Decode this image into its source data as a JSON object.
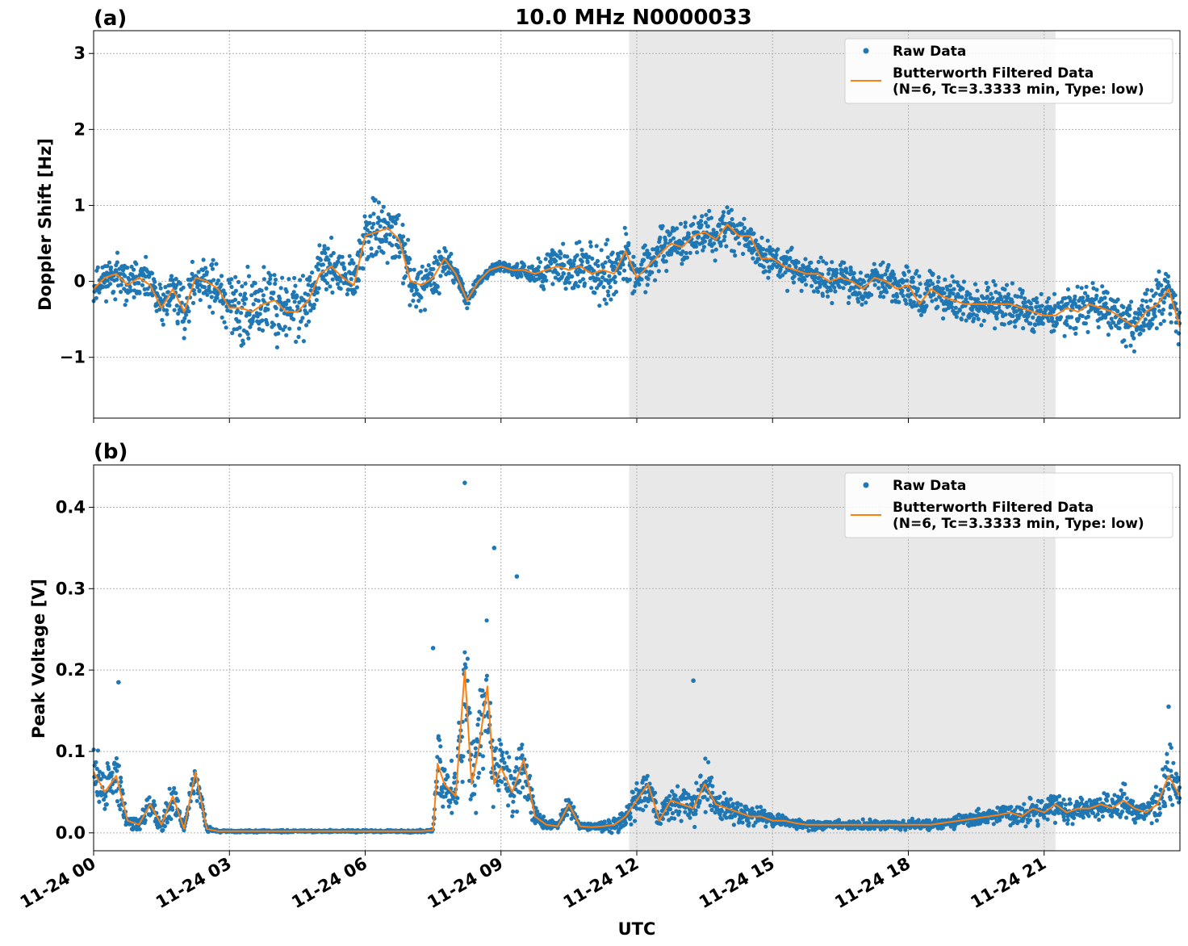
{
  "title": "10.0 MHz N0000033",
  "xlabel": "UTC",
  "x_tick_labels": [
    "11-24 00",
    "11-24 03",
    "11-24 06",
    "11-24 09",
    "11-24 12",
    "11-24 15",
    "11-24 18",
    "11-24 21"
  ],
  "colors": {
    "raw": "#1f77b4",
    "filtered": "#ff7f0e",
    "shade": "#e8e8e8",
    "grid": "#b0b0b0"
  },
  "chart_data": [
    {
      "type": "scatter",
      "panel_label": "(a)",
      "ylabel": "Doppler Shift [Hz]",
      "xlim": [
        0,
        24
      ],
      "ylim": [
        -1.8,
        3.3
      ],
      "y_tick_labels": [
        "−1",
        "0",
        "1",
        "2",
        "3"
      ],
      "y_ticks": [
        -1,
        0,
        1,
        2,
        3
      ],
      "shaded_region": [
        11.83,
        21.25
      ],
      "grid": true,
      "legend": {
        "placement": "top-right",
        "raw_label": "Raw Data",
        "filtered_label_line1": "Butterworth Filtered Data",
        "filtered_label_line2": "(N=6, Tc=3.3333 min, Type: low)"
      },
      "series": [
        {
          "name": "Butterworth Filtered Data",
          "x": [
            0,
            0.25,
            0.5,
            0.75,
            1.0,
            1.25,
            1.5,
            1.75,
            2.0,
            2.25,
            2.5,
            2.75,
            3.0,
            3.25,
            3.5,
            3.75,
            4.0,
            4.25,
            4.5,
            4.75,
            5.0,
            5.25,
            5.5,
            5.75,
            6.0,
            6.25,
            6.5,
            6.75,
            7.0,
            7.25,
            7.5,
            7.75,
            8.0,
            8.25,
            8.5,
            8.75,
            9.0,
            9.25,
            9.5,
            9.75,
            10.0,
            10.25,
            10.5,
            10.75,
            11.0,
            11.25,
            11.5,
            11.75,
            12.0,
            12.25,
            12.5,
            12.75,
            13.0,
            13.25,
            13.5,
            13.75,
            14.0,
            14.25,
            14.5,
            14.75,
            15.0,
            15.25,
            15.5,
            15.75,
            16.0,
            16.25,
            16.5,
            16.75,
            17.0,
            17.25,
            17.5,
            17.75,
            18.0,
            18.25,
            18.5,
            18.75,
            19.0,
            19.25,
            19.5,
            19.75,
            20.0,
            20.25,
            20.5,
            20.75,
            21.0,
            21.25,
            21.5,
            21.75,
            22.0,
            22.25,
            22.5,
            22.75,
            23.0,
            23.25,
            23.5,
            23.75,
            24.0
          ],
          "values": [
            -0.1,
            0.05,
            0.1,
            -0.05,
            0.05,
            -0.05,
            -0.35,
            -0.1,
            -0.4,
            0.05,
            0.0,
            -0.1,
            -0.35,
            -0.35,
            -0.4,
            -0.3,
            -0.25,
            -0.4,
            -0.4,
            -0.25,
            0.1,
            0.2,
            0.05,
            -0.05,
            0.6,
            0.65,
            0.7,
            0.55,
            0.0,
            -0.05,
            0.05,
            0.3,
            0.1,
            -0.25,
            0.0,
            0.15,
            0.2,
            0.15,
            0.15,
            0.1,
            0.15,
            0.2,
            0.15,
            0.2,
            0.1,
            0.15,
            0.1,
            0.4,
            0.05,
            0.2,
            0.35,
            0.5,
            0.45,
            0.6,
            0.65,
            0.55,
            0.75,
            0.6,
            0.6,
            0.3,
            0.3,
            0.2,
            0.15,
            0.1,
            0.1,
            0.0,
            0.05,
            0.0,
            -0.1,
            0.05,
            0.0,
            -0.1,
            -0.05,
            -0.3,
            -0.1,
            -0.2,
            -0.25,
            -0.3,
            -0.3,
            -0.3,
            -0.3,
            -0.3,
            -0.35,
            -0.4,
            -0.45,
            -0.45,
            -0.35,
            -0.4,
            -0.3,
            -0.35,
            -0.4,
            -0.5,
            -0.6,
            -0.4,
            -0.3,
            -0.1,
            -0.6
          ]
        },
        {
          "name": "Raw Data",
          "scatter_band_center": [
            -0.1,
            0.05,
            0.1,
            -0.05,
            0.05,
            -0.05,
            -0.35,
            -0.1,
            -0.4,
            0.05,
            0.0,
            -0.1,
            -0.35,
            -0.35,
            -0.4,
            -0.3,
            -0.25,
            -0.4,
            -0.4,
            -0.25,
            0.1,
            0.2,
            0.05,
            -0.05,
            0.6,
            0.65,
            0.7,
            0.55,
            0.0,
            -0.05,
            0.05,
            0.3,
            0.1,
            -0.25,
            0.0,
            0.15,
            0.2,
            0.15,
            0.15,
            0.1,
            0.15,
            0.2,
            0.15,
            0.2,
            0.1,
            0.15,
            0.1,
            0.4,
            0.05,
            0.2,
            0.35,
            0.5,
            0.45,
            0.6,
            0.65,
            0.55,
            0.75,
            0.6,
            0.6,
            0.3,
            0.3,
            0.2,
            0.15,
            0.1,
            0.1,
            0.0,
            0.05,
            0.0,
            -0.1,
            0.05,
            0.0,
            -0.1,
            -0.05,
            -0.3,
            -0.1,
            -0.2,
            -0.25,
            -0.3,
            -0.3,
            -0.3,
            -0.3,
            -0.3,
            -0.35,
            -0.4,
            -0.45,
            -0.45,
            -0.35,
            -0.4,
            -0.3,
            -0.35,
            -0.4,
            -0.5,
            -0.6,
            -0.4,
            -0.3,
            -0.1,
            -0.6
          ],
          "scatter_band_halfwidth": [
            0.3,
            0.35,
            0.4,
            0.35,
            0.35,
            0.35,
            0.45,
            0.4,
            0.5,
            0.35,
            0.4,
            0.55,
            0.65,
            0.75,
            0.8,
            0.85,
            0.8,
            0.7,
            0.65,
            0.55,
            0.45,
            0.45,
            0.45,
            0.45,
            0.5,
            0.6,
            0.55,
            0.5,
            0.5,
            0.45,
            0.45,
            0.35,
            0.2,
            0.15,
            0.1,
            0.08,
            0.08,
            0.1,
            0.15,
            0.2,
            0.35,
            0.45,
            0.5,
            0.5,
            0.55,
            0.7,
            0.45,
            0.5,
            0.35,
            0.45,
            0.45,
            0.45,
            0.4,
            0.4,
            0.4,
            0.4,
            0.45,
            0.35,
            0.35,
            0.35,
            0.35,
            0.35,
            0.35,
            0.35,
            0.35,
            0.35,
            0.35,
            0.35,
            0.4,
            0.35,
            0.35,
            0.35,
            0.4,
            0.45,
            0.4,
            0.4,
            0.4,
            0.4,
            0.4,
            0.4,
            0.4,
            0.4,
            0.4,
            0.4,
            0.4,
            0.4,
            0.4,
            0.4,
            0.4,
            0.4,
            0.4,
            0.45,
            0.5,
            0.45,
            0.45,
            0.45,
            0.5
          ]
        }
      ]
    },
    {
      "type": "scatter",
      "panel_label": "(b)",
      "ylabel": "Peak Voltage [V]",
      "xlim": [
        0,
        24
      ],
      "ylim": [
        -0.022,
        0.452
      ],
      "y_tick_labels": [
        "0.0",
        "0.1",
        "0.2",
        "0.3",
        "0.4"
      ],
      "y_ticks": [
        0.0,
        0.1,
        0.2,
        0.3,
        0.4
      ],
      "shaded_region": [
        11.83,
        21.25
      ],
      "grid": true,
      "legend": {
        "placement": "top-right",
        "raw_label": "Raw Data",
        "filtered_label_line1": "Butterworth Filtered Data",
        "filtered_label_line2": "(N=6, Tc=3.3333 min, Type: low)"
      },
      "series": [
        {
          "name": "Butterworth Filtered Data",
          "x": [
            0,
            0.25,
            0.5,
            0.75,
            1.0,
            1.25,
            1.5,
            1.75,
            2.0,
            2.25,
            2.5,
            2.75,
            3.0,
            3.25,
            3.5,
            3.75,
            4.0,
            4.25,
            4.5,
            4.75,
            5.0,
            5.25,
            5.5,
            5.75,
            6.0,
            6.25,
            6.5,
            6.75,
            7.0,
            7.25,
            7.5,
            7.6,
            7.75,
            8.0,
            8.2,
            8.35,
            8.5,
            8.7,
            8.85,
            9.0,
            9.25,
            9.5,
            9.75,
            10.0,
            10.25,
            10.5,
            10.75,
            11.0,
            11.25,
            11.5,
            11.75,
            12.0,
            12.25,
            12.5,
            12.75,
            13.0,
            13.25,
            13.5,
            13.75,
            14.0,
            14.25,
            14.5,
            14.75,
            15.0,
            15.25,
            15.5,
            15.75,
            16.0,
            16.25,
            16.5,
            16.75,
            17.0,
            17.25,
            17.5,
            17.75,
            18.0,
            18.25,
            18.5,
            18.75,
            19.0,
            19.25,
            19.5,
            19.75,
            20.0,
            20.25,
            20.5,
            20.75,
            21.0,
            21.25,
            21.5,
            21.75,
            22.0,
            22.25,
            22.5,
            22.75,
            23.0,
            23.25,
            23.5,
            23.75,
            24.0
          ],
          "values": [
            0.075,
            0.05,
            0.07,
            0.015,
            0.01,
            0.035,
            0.01,
            0.045,
            0.005,
            0.075,
            0.005,
            0.002,
            0.002,
            0.002,
            0.002,
            0.002,
            0.002,
            0.002,
            0.002,
            0.002,
            0.002,
            0.002,
            0.002,
            0.002,
            0.002,
            0.002,
            0.002,
            0.002,
            0.002,
            0.002,
            0.003,
            0.085,
            0.06,
            0.045,
            0.2,
            0.06,
            0.1,
            0.18,
            0.06,
            0.08,
            0.05,
            0.09,
            0.02,
            0.01,
            0.008,
            0.035,
            0.008,
            0.007,
            0.008,
            0.01,
            0.02,
            0.04,
            0.06,
            0.015,
            0.04,
            0.035,
            0.03,
            0.06,
            0.035,
            0.03,
            0.025,
            0.02,
            0.02,
            0.015,
            0.015,
            0.012,
            0.01,
            0.01,
            0.01,
            0.01,
            0.01,
            0.01,
            0.01,
            0.01,
            0.01,
            0.01,
            0.01,
            0.01,
            0.012,
            0.014,
            0.016,
            0.018,
            0.02,
            0.022,
            0.025,
            0.02,
            0.03,
            0.025,
            0.035,
            0.025,
            0.03,
            0.03,
            0.035,
            0.03,
            0.04,
            0.03,
            0.025,
            0.035,
            0.07,
            0.045
          ]
        },
        {
          "name": "Raw Data",
          "scatter_band_center": [
            0.075,
            0.05,
            0.07,
            0.015,
            0.01,
            0.035,
            0.01,
            0.045,
            0.005,
            0.075,
            0.005,
            0.002,
            0.002,
            0.002,
            0.002,
            0.002,
            0.002,
            0.002,
            0.002,
            0.002,
            0.002,
            0.002,
            0.002,
            0.002,
            0.002,
            0.002,
            0.002,
            0.002,
            0.002,
            0.002,
            0.003,
            0.085,
            0.06,
            0.045,
            0.2,
            0.06,
            0.1,
            0.18,
            0.06,
            0.08,
            0.05,
            0.09,
            0.02,
            0.01,
            0.008,
            0.035,
            0.008,
            0.007,
            0.008,
            0.01,
            0.02,
            0.04,
            0.06,
            0.015,
            0.04,
            0.035,
            0.03,
            0.06,
            0.035,
            0.03,
            0.025,
            0.02,
            0.02,
            0.015,
            0.015,
            0.012,
            0.01,
            0.01,
            0.01,
            0.01,
            0.01,
            0.01,
            0.01,
            0.01,
            0.01,
            0.01,
            0.01,
            0.01,
            0.012,
            0.014,
            0.016,
            0.018,
            0.02,
            0.022,
            0.025,
            0.02,
            0.03,
            0.025,
            0.035,
            0.025,
            0.03,
            0.03,
            0.035,
            0.03,
            0.04,
            0.03,
            0.025,
            0.035,
            0.07,
            0.045
          ],
          "scatter_band_halfwidth": [
            0.05,
            0.04,
            0.06,
            0.01,
            0.01,
            0.025,
            0.01,
            0.04,
            0.005,
            0.03,
            0.005,
            0.002,
            0.002,
            0.002,
            0.002,
            0.002,
            0.002,
            0.002,
            0.002,
            0.002,
            0.002,
            0.002,
            0.002,
            0.002,
            0.002,
            0.002,
            0.002,
            0.002,
            0.002,
            0.002,
            0.003,
            0.07,
            0.06,
            0.05,
            0.12,
            0.08,
            0.1,
            0.12,
            0.07,
            0.07,
            0.05,
            0.06,
            0.02,
            0.01,
            0.008,
            0.02,
            0.006,
            0.006,
            0.008,
            0.012,
            0.02,
            0.035,
            0.04,
            0.015,
            0.03,
            0.03,
            0.03,
            0.06,
            0.03,
            0.025,
            0.02,
            0.02,
            0.015,
            0.012,
            0.012,
            0.01,
            0.008,
            0.008,
            0.008,
            0.008,
            0.008,
            0.008,
            0.008,
            0.008,
            0.008,
            0.008,
            0.008,
            0.008,
            0.01,
            0.01,
            0.012,
            0.014,
            0.015,
            0.015,
            0.02,
            0.015,
            0.025,
            0.02,
            0.025,
            0.02,
            0.025,
            0.02,
            0.025,
            0.02,
            0.03,
            0.02,
            0.02,
            0.03,
            0.06,
            0.03
          ]
        }
      ],
      "notable_peaks": [
        {
          "x": 8.2,
          "y": 0.43
        },
        {
          "x": 8.85,
          "y": 0.35
        },
        {
          "x": 9.35,
          "y": 0.315
        },
        {
          "x": 7.5,
          "y": 0.227
        },
        {
          "x": 13.25,
          "y": 0.187
        },
        {
          "x": 0.55,
          "y": 0.185
        },
        {
          "x": 23.75,
          "y": 0.155
        }
      ]
    }
  ]
}
